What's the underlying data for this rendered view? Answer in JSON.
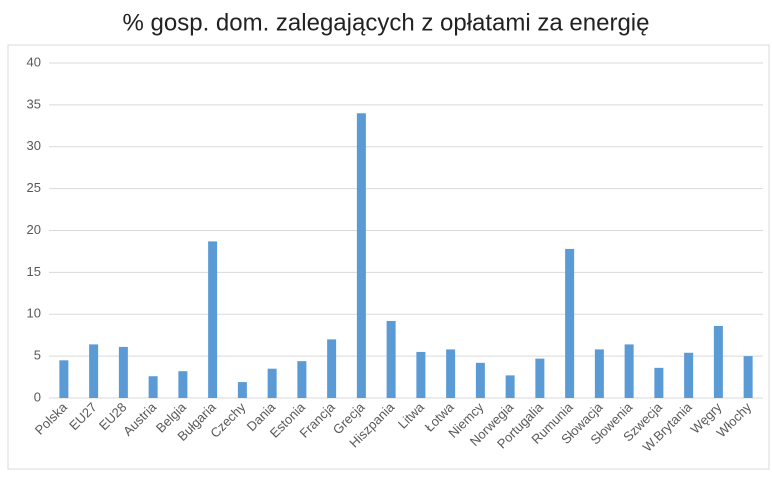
{
  "chart_data": {
    "type": "bar",
    "title": "% gosp. dom. zalegających z opłatami za energię",
    "categories": [
      "Polska",
      "EU27",
      "EU28",
      "Austria",
      "Belgia",
      "Bułgaria",
      "Czechy",
      "Dania",
      "Estonia",
      "Francja",
      "Grecja",
      "Hiszpania",
      "Litwa",
      "Łotwa",
      "Niemcy",
      "Norwegia",
      "Portugalia",
      "Rumunia",
      "Słowacja",
      "Słowenia",
      "Szwecja",
      "W.Brytania",
      "Węgry",
      "Włochy"
    ],
    "values": [
      4.5,
      6.4,
      6.1,
      2.6,
      3.2,
      18.7,
      1.9,
      3.5,
      4.4,
      7.0,
      34.0,
      9.2,
      5.5,
      5.8,
      4.2,
      2.7,
      4.7,
      17.8,
      5.8,
      6.4,
      3.6,
      5.4,
      8.6,
      5.0
    ],
    "color": "#5b9bd5",
    "ylim": [
      0,
      40
    ],
    "yticks": [
      0,
      5,
      10,
      15,
      20,
      25,
      30,
      35,
      40
    ],
    "grid": true
  }
}
